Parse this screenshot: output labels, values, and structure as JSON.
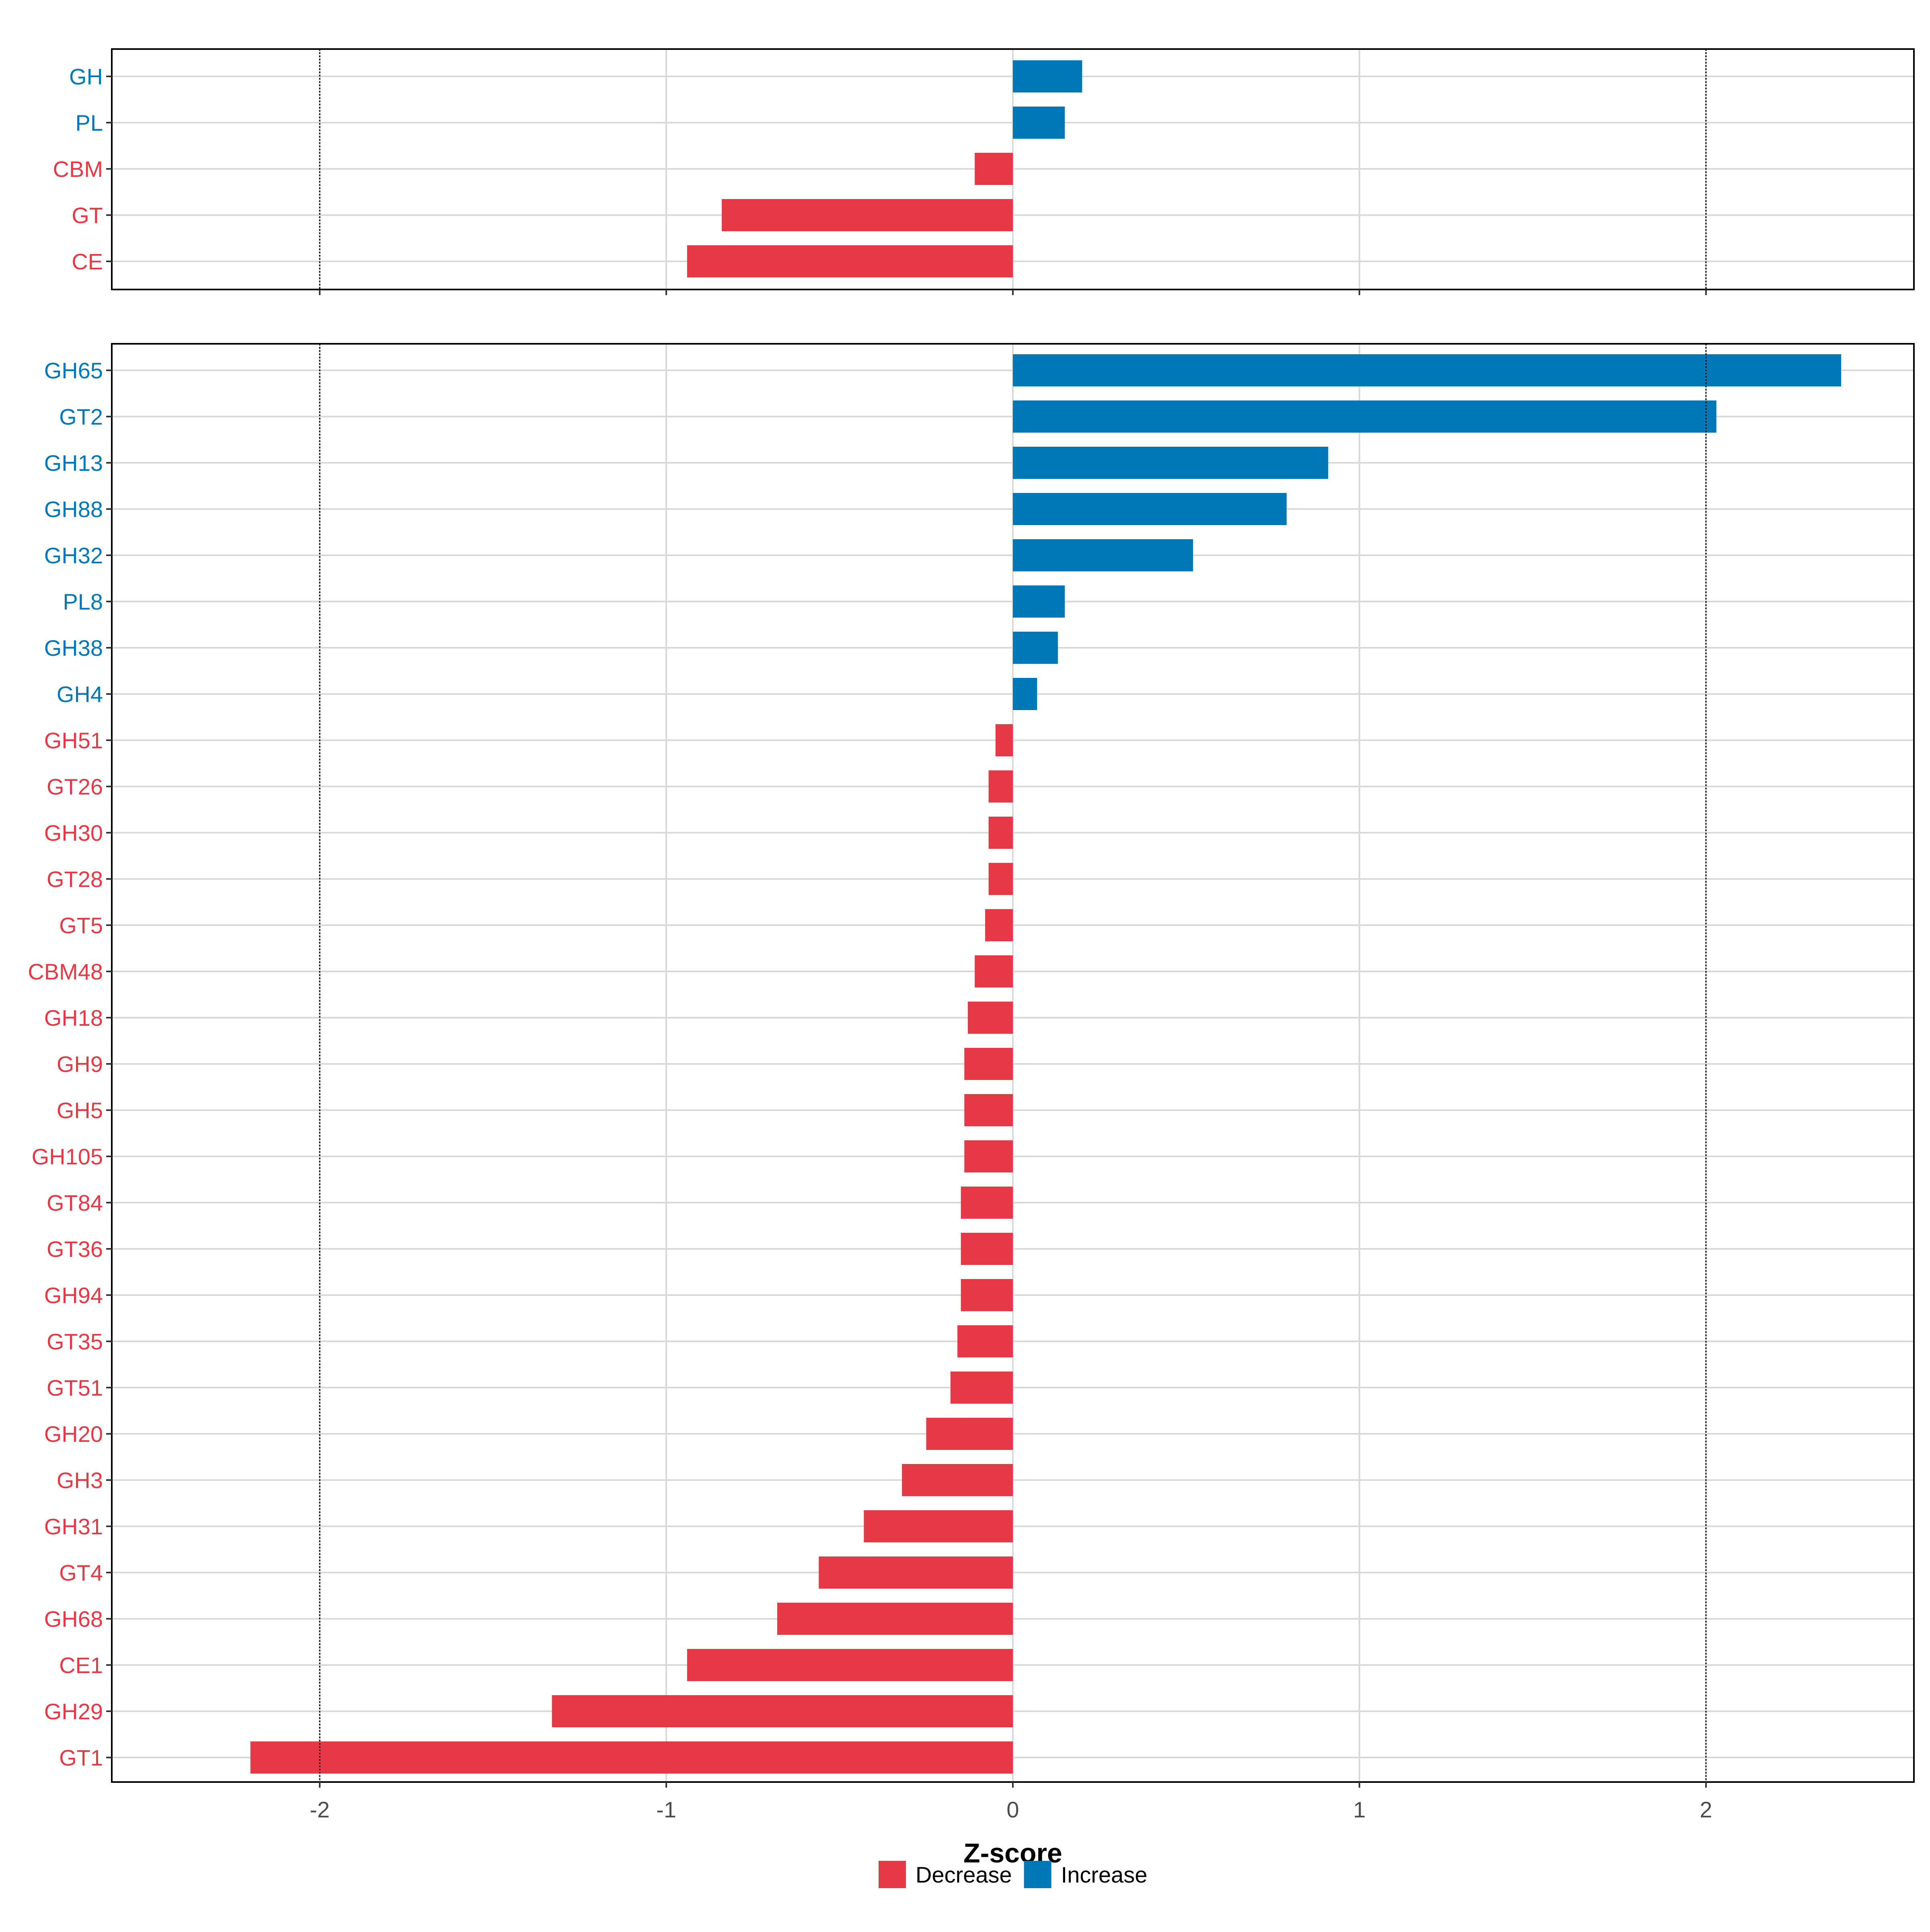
{
  "colors": {
    "Decrease": "#E63946",
    "Increase": "#0077B6",
    "grid": "#d9d9d9",
    "frame": "#000000",
    "reference": "#000000"
  },
  "chart_data": {
    "type": "bar",
    "orientation": "horizontal",
    "xlabel": "Z-score",
    "xlim": [
      -2.6,
      2.6
    ],
    "xticks": [
      -2,
      -1,
      0,
      1,
      2
    ],
    "xtick_labels": [
      "-2",
      "-1",
      "0",
      "1",
      "2"
    ],
    "reference_lines": [
      -2,
      2
    ],
    "legend": {
      "position": "bottom",
      "entries": [
        "Decrease",
        "Increase"
      ]
    },
    "panels": [
      {
        "name": "classes",
        "categories": [
          "GH",
          "PL",
          "CBM",
          "GT",
          "CE"
        ],
        "values": [
          0.2,
          0.15,
          -0.11,
          -0.84,
          -0.94
        ],
        "direction": [
          "Increase",
          "Increase",
          "Decrease",
          "Decrease",
          "Decrease"
        ]
      },
      {
        "name": "families",
        "categories": [
          "GH65",
          "GT2",
          "GH13",
          "GH88",
          "GH32",
          "PL8",
          "GH38",
          "GH4",
          "GH51",
          "GT26",
          "GH30",
          "GT28",
          "GT5",
          "CBM48",
          "GH18",
          "GH9",
          "GH5",
          "GH105",
          "GT84",
          "GT36",
          "GH94",
          "GT35",
          "GT51",
          "GH20",
          "GH3",
          "GH31",
          "GT4",
          "GH68",
          "CE1",
          "GH29",
          "GT1"
        ],
        "values": [
          2.39,
          2.03,
          0.91,
          0.79,
          0.52,
          0.15,
          0.13,
          0.07,
          -0.05,
          -0.07,
          -0.07,
          -0.07,
          -0.08,
          -0.11,
          -0.13,
          -0.14,
          -0.14,
          -0.14,
          -0.15,
          -0.15,
          -0.15,
          -0.16,
          -0.18,
          -0.25,
          -0.32,
          -0.43,
          -0.56,
          -0.68,
          -0.94,
          -1.33,
          -2.2
        ],
        "direction": [
          "Increase",
          "Increase",
          "Increase",
          "Increase",
          "Increase",
          "Increase",
          "Increase",
          "Increase",
          "Decrease",
          "Decrease",
          "Decrease",
          "Decrease",
          "Decrease",
          "Decrease",
          "Decrease",
          "Decrease",
          "Decrease",
          "Decrease",
          "Decrease",
          "Decrease",
          "Decrease",
          "Decrease",
          "Decrease",
          "Decrease",
          "Decrease",
          "Decrease",
          "Decrease",
          "Decrease",
          "Decrease",
          "Decrease",
          "Decrease"
        ]
      }
    ]
  }
}
